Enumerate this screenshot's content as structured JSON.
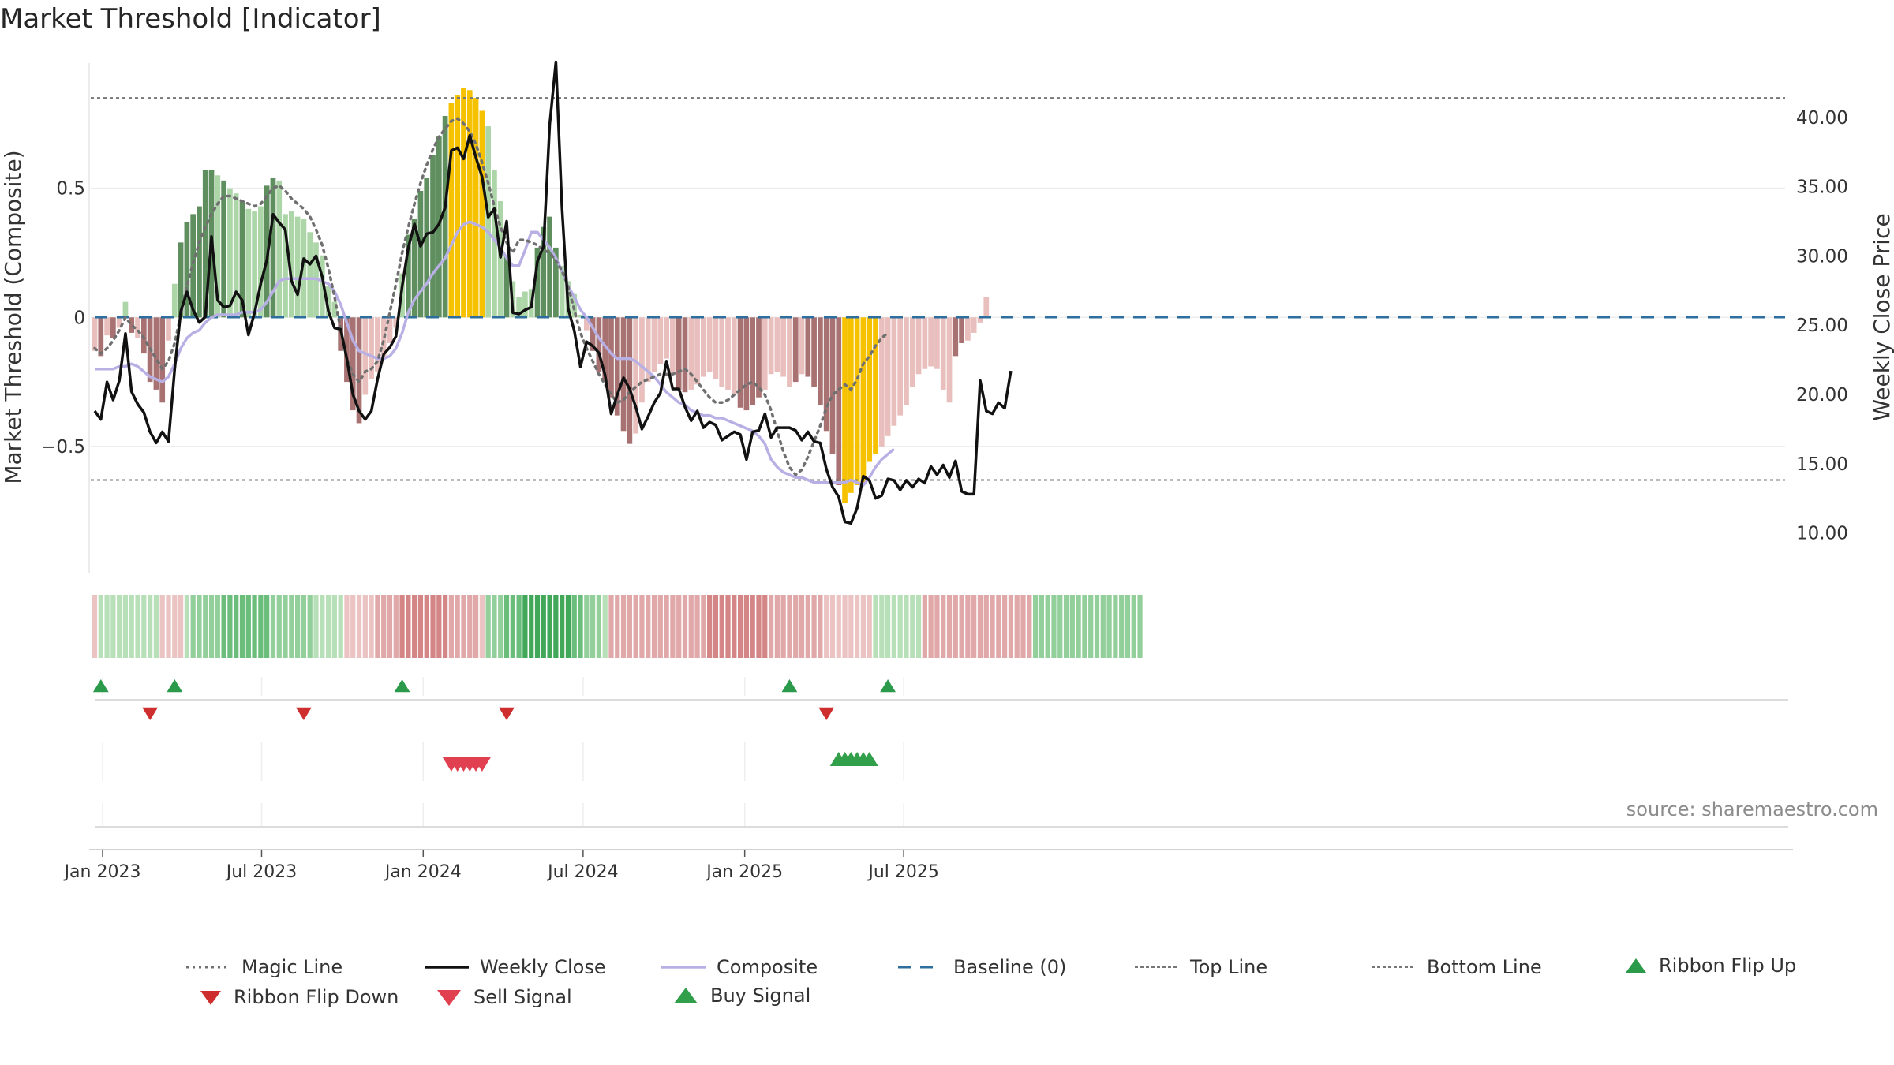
{
  "header": {
    "title": "Market Threshold [Indicator]"
  },
  "footer": {
    "source": "source: sharemaestro.com"
  },
  "colors": {
    "strong_up": "#5f8f5f",
    "weak_up": "#add6a8",
    "strong_down": "#a87272",
    "weak_down": "#e8bfbc",
    "extreme": "#f6c200",
    "magic_line": "#707070",
    "weekly_close": "#111111",
    "composite": "#b8b0e4",
    "baseline": "#2f6f9f",
    "threshold_lines": "#777777",
    "ribbon_flip_up": "#2b9a4a",
    "ribbon_flip_down": "#cf2e2e",
    "sell_signal": "#e04050",
    "buy_signal": "#32a04a"
  },
  "legend": [
    {
      "label": "Magic Line",
      "icon": "dotted-line"
    },
    {
      "label": "Weekly Close",
      "icon": "solid-line"
    },
    {
      "label": "Composite",
      "icon": "light-line"
    },
    {
      "label": "Baseline (0)",
      "icon": "dashed-line"
    },
    {
      "label": "Top Line",
      "icon": "fine-dotted-line"
    },
    {
      "label": "Bottom Line",
      "icon": "fine-dotted-line"
    },
    {
      "label": "Ribbon Flip Up",
      "icon": "triangle-up"
    },
    {
      "label": "Ribbon Flip Down",
      "icon": "triangle-down"
    },
    {
      "label": "Sell Signal",
      "icon": "triangle-down"
    },
    {
      "label": "Buy Signal",
      "icon": "triangle-up"
    }
  ],
  "chart_data": {
    "type": "bar",
    "title": "Market Threshold [Indicator]",
    "ylabel": "Market Threshold (Composite)",
    "y2label": "Weekly Close Price",
    "ylim": [
      -0.98,
      1.0
    ],
    "y2lim": [
      7.3,
      44.2
    ],
    "yticks": [
      {
        "v": 0.5,
        "label": "0.5"
      },
      {
        "v": 0,
        "label": "0"
      },
      {
        "v": -0.5,
        "label": "−0.5"
      }
    ],
    "y2ticks": [
      {
        "v": 40,
        "label": "40.00"
      },
      {
        "v": 35,
        "label": "35.00"
      },
      {
        "v": 30,
        "label": "30.00"
      },
      {
        "v": 25,
        "label": "25.00"
      },
      {
        "v": 20,
        "label": "20.00"
      },
      {
        "v": 15,
        "label": "15.00"
      },
      {
        "v": 10,
        "label": "10.00"
      }
    ],
    "xticks": [
      "Jan 2023",
      "Jul 2023",
      "Jan 2024",
      "Jul 2024",
      "Jan 2025",
      "Jul 2025"
    ],
    "x_start": "2022-12-23",
    "x_interval": "weekly",
    "top_line": 0.85,
    "bottom_line": -0.63,
    "baseline": 0,
    "composite_histogram": [
      -0.13,
      -0.15,
      -0.07,
      -0.08,
      -0.04,
      0.06,
      -0.06,
      -0.08,
      -0.14,
      -0.25,
      -0.28,
      -0.33,
      -0.09,
      0.13,
      0.29,
      0.37,
      0.4,
      0.43,
      0.57,
      0.57,
      0.55,
      0.53,
      0.5,
      0.48,
      0.45,
      0.42,
      0.41,
      0.43,
      0.51,
      0.54,
      0.53,
      0.4,
      0.41,
      0.39,
      0.38,
      0.33,
      0.29,
      0.24,
      0.12,
      0.06,
      -0.13,
      -0.25,
      -0.36,
      -0.41,
      -0.3,
      -0.24,
      -0.21,
      -0.16,
      -0.1,
      -0.04,
      0.17,
      0.32,
      0.38,
      0.49,
      0.54,
      0.63,
      0.7,
      0.78,
      0.83,
      0.86,
      0.89,
      0.88,
      0.85,
      0.8,
      0.74,
      0.57,
      0.45,
      0.24,
      0.14,
      0.08,
      0.1,
      0.11,
      0.27,
      0.35,
      0.39,
      0.27,
      0.2,
      0.14,
      0.09,
      0.01,
      -0.05,
      -0.13,
      -0.21,
      -0.25,
      -0.31,
      -0.38,
      -0.44,
      -0.49,
      -0.45,
      -0.33,
      -0.25,
      -0.21,
      -0.18,
      -0.16,
      -0.22,
      -0.28,
      -0.29,
      -0.28,
      -0.26,
      -0.23,
      -0.21,
      -0.24,
      -0.27,
      -0.28,
      -0.3,
      -0.35,
      -0.36,
      -0.34,
      -0.31,
      -0.28,
      -0.22,
      -0.21,
      -0.23,
      -0.27,
      -0.25,
      -0.22,
      -0.23,
      -0.27,
      -0.34,
      -0.44,
      -0.53,
      -0.65,
      -0.72,
      -0.68,
      -0.65,
      -0.64,
      -0.56,
      -0.53,
      -0.5,
      -0.46,
      -0.42,
      -0.38,
      -0.34,
      -0.27,
      -0.22,
      -0.2,
      -0.19,
      -0.2,
      -0.28,
      -0.33,
      -0.15,
      -0.1,
      -0.09,
      -0.06,
      -0.02,
      0.08
    ],
    "bar_class": [
      "wd",
      "sd",
      "wd",
      "sd",
      "wd",
      "wu",
      "sd",
      "wd",
      "sd",
      "sd",
      "sd",
      "sd",
      "wd",
      "wu",
      "su",
      "su",
      "su",
      "su",
      "su",
      "su",
      "wu",
      "su",
      "wu",
      "wu",
      "su",
      "wu",
      "wu",
      "wu",
      "su",
      "su",
      "wu",
      "wu",
      "wu",
      "wu",
      "wu",
      "wu",
      "wu",
      "wu",
      "wu",
      "wu",
      "sd",
      "sd",
      "sd",
      "sd",
      "wd",
      "wd",
      "wd",
      "wd",
      "wd",
      "wd",
      "wu",
      "su",
      "su",
      "su",
      "su",
      "su",
      "su",
      "su",
      "ex",
      "ex",
      "ex",
      "ex",
      "ex",
      "ex",
      "wu",
      "wu",
      "wu",
      "su",
      "wu",
      "wu",
      "wu",
      "wu",
      "su",
      "su",
      "su",
      "su",
      "wu",
      "wu",
      "wu",
      "wu",
      "wd",
      "sd",
      "sd",
      "sd",
      "sd",
      "sd",
      "sd",
      "sd",
      "wd",
      "wd",
      "wd",
      "wd",
      "wd",
      "wd",
      "wd",
      "sd",
      "sd",
      "wd",
      "wd",
      "wd",
      "wd",
      "wd",
      "wd",
      "wd",
      "wd",
      "sd",
      "sd",
      "sd",
      "sd",
      "wd",
      "wd",
      "wd",
      "wd",
      "wd",
      "sd",
      "wd",
      "sd",
      "sd",
      "sd",
      "sd",
      "sd",
      "sd",
      "ex",
      "ex",
      "ex",
      "ex",
      "ex",
      "ex",
      "wd",
      "wd",
      "wd",
      "wd",
      "wd",
      "wd",
      "wd",
      "wd",
      "wd",
      "wd",
      "wd",
      "wd",
      "sd",
      "sd",
      "wd",
      "wd",
      "wd",
      "wd",
      "wu"
    ],
    "weekly_close": [
      18.8,
      18.2,
      20.9,
      19.6,
      21.0,
      24.4,
      20.2,
      19.3,
      18.7,
      17.3,
      16.5,
      17.3,
      16.6,
      21.8,
      26.0,
      27.4,
      26.1,
      25.2,
      25.6,
      31.4,
      26.8,
      26.3,
      26.4,
      27.4,
      26.8,
      24.3,
      25.9,
      28.0,
      29.7,
      33.0,
      32.4,
      31.9,
      28.2,
      27.2,
      29.8,
      29.4,
      30.0,
      28.5,
      26.0,
      24.8,
      24.7,
      22.6,
      20.0,
      18.8,
      18.2,
      18.8,
      21.1,
      22.9,
      23.4,
      24.2,
      27.8,
      30.6,
      32.3,
      30.7,
      31.6,
      31.7,
      32.3,
      33.5,
      37.6,
      37.8,
      37.0,
      38.7,
      37.1,
      35.7,
      32.8,
      33.4,
      29.9,
      32.5,
      25.9,
      25.8,
      26.1,
      26.3,
      29.6,
      30.7,
      39.5,
      44.0,
      33.5,
      26.2,
      24.6,
      22.0,
      23.8,
      23.5,
      23.0,
      21.4,
      18.6,
      20.0,
      21.2,
      20.4,
      19.1,
      17.5,
      18.4,
      19.4,
      20.1,
      22.4,
      20.4,
      20.4,
      19.1,
      18.1,
      18.8,
      17.6,
      18.0,
      17.8,
      16.7,
      17.0,
      17.3,
      17.1,
      15.3,
      17.3,
      17.4,
      18.6,
      16.9,
      17.6,
      17.6,
      17.6,
      17.4,
      16.7,
      17.3,
      16.6,
      16.5,
      14.6,
      13.3,
      12.6,
      10.8,
      10.7,
      11.8,
      14.1,
      13.8,
      12.5,
      12.7,
      13.9,
      13.8,
      13.1,
      13.8,
      13.3,
      13.9,
      13.6,
      14.8,
      14.2,
      14.9,
      14.0,
      15.2,
      13.0,
      12.8,
      12.8,
      21.0,
      18.8,
      18.6,
      19.4,
      19.0,
      21.7
    ],
    "magic_line": [
      -0.12,
      -0.14,
      -0.12,
      -0.09,
      -0.05,
      0.0,
      -0.03,
      -0.05,
      -0.08,
      -0.12,
      -0.16,
      -0.2,
      -0.17,
      -0.1,
      0.01,
      0.12,
      0.21,
      0.29,
      0.35,
      0.4,
      0.44,
      0.47,
      0.47,
      0.46,
      0.45,
      0.44,
      0.43,
      0.44,
      0.47,
      0.5,
      0.51,
      0.49,
      0.46,
      0.44,
      0.42,
      0.39,
      0.34,
      0.28,
      0.19,
      0.08,
      -0.05,
      -0.16,
      -0.22,
      -0.25,
      -0.21,
      -0.2,
      -0.17,
      -0.09,
      0.02,
      0.13,
      0.25,
      0.35,
      0.44,
      0.52,
      0.59,
      0.65,
      0.7,
      0.73,
      0.76,
      0.77,
      0.75,
      0.72,
      0.67,
      0.6,
      0.52,
      0.43,
      0.35,
      0.29,
      0.25,
      0.3,
      0.3,
      0.29,
      0.28,
      0.26,
      0.25,
      0.22,
      0.18,
      0.12,
      0.03,
      -0.06,
      -0.12,
      -0.17,
      -0.22,
      -0.26,
      -0.3,
      -0.33,
      -0.32,
      -0.29,
      -0.27,
      -0.25,
      -0.24,
      -0.23,
      -0.22,
      -0.22,
      -0.22,
      -0.21,
      -0.2,
      -0.22,
      -0.25,
      -0.28,
      -0.31,
      -0.33,
      -0.33,
      -0.32,
      -0.3,
      -0.28,
      -0.26,
      -0.25,
      -0.27,
      -0.3,
      -0.36,
      -0.44,
      -0.52,
      -0.58,
      -0.61,
      -0.59,
      -0.54,
      -0.48,
      -0.42,
      -0.35,
      -0.3,
      -0.28,
      -0.26,
      -0.28,
      -0.24,
      -0.18,
      -0.15,
      -0.11,
      -0.08,
      -0.06
    ],
    "composite_line": [
      -0.2,
      -0.2,
      -0.2,
      -0.2,
      -0.19,
      -0.19,
      -0.18,
      -0.19,
      -0.21,
      -0.23,
      -0.24,
      -0.25,
      -0.23,
      -0.18,
      -0.12,
      -0.08,
      -0.06,
      -0.05,
      -0.02,
      0.0,
      0.01,
      0.01,
      0.01,
      0.01,
      0.02,
      0.02,
      0.02,
      0.03,
      0.06,
      0.1,
      0.14,
      0.15,
      0.15,
      0.15,
      0.15,
      0.15,
      0.15,
      0.14,
      0.13,
      0.1,
      0.05,
      -0.02,
      -0.09,
      -0.13,
      -0.14,
      -0.15,
      -0.16,
      -0.16,
      -0.15,
      -0.12,
      -0.06,
      0.02,
      0.07,
      0.1,
      0.13,
      0.17,
      0.2,
      0.23,
      0.28,
      0.33,
      0.36,
      0.37,
      0.36,
      0.35,
      0.33,
      0.3,
      0.27,
      0.23,
      0.2,
      0.2,
      0.26,
      0.33,
      0.33,
      0.3,
      0.27,
      0.23,
      0.18,
      0.12,
      0.08,
      0.03,
      0.0,
      -0.04,
      -0.08,
      -0.11,
      -0.14,
      -0.16,
      -0.16,
      -0.16,
      -0.17,
      -0.19,
      -0.21,
      -0.23,
      -0.26,
      -0.29,
      -0.31,
      -0.33,
      -0.34,
      -0.36,
      -0.37,
      -0.38,
      -0.38,
      -0.39,
      -0.39,
      -0.4,
      -0.41,
      -0.42,
      -0.43,
      -0.44,
      -0.46,
      -0.49,
      -0.55,
      -0.58,
      -0.6,
      -0.61,
      -0.62,
      -0.62,
      -0.63,
      -0.64,
      -0.64,
      -0.64,
      -0.64,
      -0.64,
      -0.64,
      -0.63,
      -0.64,
      -0.65,
      -0.62,
      -0.58,
      -0.55,
      -0.53,
      -0.51
    ],
    "ribbon_levels": [
      -1,
      1,
      1,
      1,
      1,
      1,
      1,
      1,
      1,
      1,
      1,
      -1,
      -1,
      -1,
      -1,
      1,
      2,
      2,
      2,
      2,
      2,
      3,
      3,
      3,
      3,
      3,
      3,
      3,
      3,
      2,
      2,
      2,
      2,
      2,
      2,
      2,
      1,
      1,
      1,
      1,
      1,
      -1,
      -1,
      -1,
      -1,
      -1,
      -2,
      -2,
      -2,
      -2,
      -3,
      -3,
      -3,
      -3,
      -3,
      -3,
      -3,
      -3,
      -2,
      -2,
      -2,
      -2,
      -2,
      -1,
      2,
      2,
      2,
      3,
      3,
      3,
      4,
      4,
      4,
      4,
      4,
      4,
      4,
      4,
      3,
      3,
      2,
      2,
      2,
      1,
      -2,
      -2,
      -2,
      -2,
      -2,
      -2,
      -2,
      -2,
      -2,
      -2,
      -2,
      -2,
      -2,
      -2,
      -2,
      -2,
      -3,
      -3,
      -3,
      -3,
      -3,
      -3,
      -3,
      -3,
      -3,
      -3,
      -2,
      -2,
      -2,
      -2,
      -2,
      -2,
      -2,
      -2,
      -2,
      -1,
      -1,
      -1,
      -1,
      -1,
      -1,
      -1,
      -1,
      1,
      1,
      1,
      1,
      1,
      1,
      1,
      1,
      -2,
      -2,
      -2,
      -2,
      -2,
      -2,
      -2,
      -2,
      -2,
      -2,
      -2,
      -2,
      -2,
      -2,
      -2,
      -2,
      -2,
      -2,
      2,
      2,
      2,
      2,
      2,
      2,
      2,
      2,
      2,
      2,
      2,
      2,
      2,
      2,
      2,
      2,
      2,
      2
    ],
    "ribbon_flip_up_weeks": [
      1,
      13,
      50,
      113,
      129
    ],
    "ribbon_flip_down_weeks": [
      9,
      34,
      67,
      119
    ],
    "sell_signal_weeks": [
      58,
      59,
      60,
      61,
      62,
      63
    ],
    "buy_signal_weeks": [
      121,
      122,
      123,
      124,
      125,
      126
    ]
  }
}
